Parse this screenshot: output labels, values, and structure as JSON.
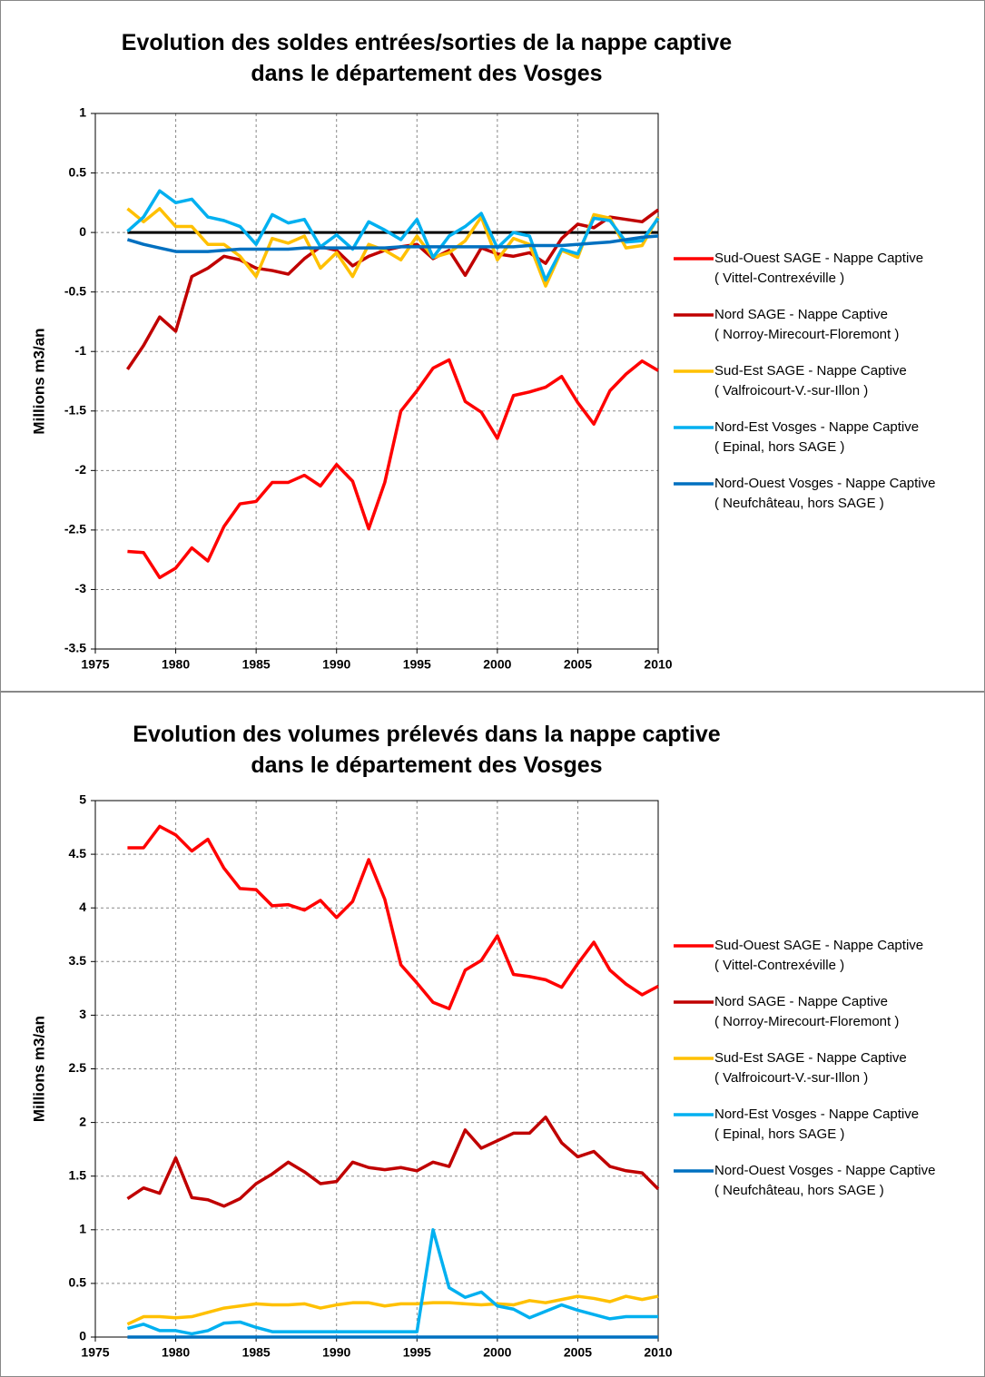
{
  "chart_data": [
    {
      "type": "line",
      "title": "Evolution des soldes entrées/sorties de la nappe captive\ndans le département des Vosges",
      "y_label": "Millions  m3/an",
      "x": [
        1977,
        1978,
        1979,
        1980,
        1981,
        1982,
        1983,
        1984,
        1985,
        1986,
        1987,
        1988,
        1989,
        1990,
        1991,
        1992,
        1993,
        1994,
        1995,
        1996,
        1997,
        1998,
        1999,
        2000,
        2001,
        2002,
        2003,
        2004,
        2005,
        2006,
        2007,
        2008,
        2009,
        2010
      ],
      "xlim": [
        1975,
        2010
      ],
      "xticks": [
        1975,
        1980,
        1985,
        1990,
        1995,
        2000,
        2005,
        2010
      ],
      "ylim": [
        -3.5,
        1
      ],
      "yticks": [
        -3.5,
        -3,
        -2.5,
        -2,
        -1.5,
        -1,
        -0.5,
        0,
        0.5,
        1
      ],
      "grid": true,
      "zero_line": true,
      "series": [
        {
          "name": "Sud-Ouest SAGE - Nappe Captive\n( Vittel-Contrexéville )",
          "color": "#ff0000",
          "values": [
            -2.68,
            -2.69,
            -2.9,
            -2.82,
            -2.65,
            -2.76,
            -2.47,
            -2.28,
            -2.26,
            -2.1,
            -2.1,
            -2.04,
            -2.13,
            -1.95,
            -2.09,
            -2.49,
            -2.1,
            -1.5,
            -1.33,
            -1.14,
            -1.07,
            -1.42,
            -1.51,
            -1.73,
            -1.37,
            -1.34,
            -1.3,
            -1.21,
            -1.43,
            -1.61,
            -1.33,
            -1.19,
            -1.08,
            -1.16
          ]
        },
        {
          "name": "Nord SAGE - Nappe Captive\n( Norroy-Mirecourt-Floremont )",
          "color": "#c00000",
          "values": [
            -1.15,
            -0.95,
            -0.71,
            -0.83,
            -0.37,
            -0.3,
            -0.2,
            -0.23,
            -0.3,
            -0.32,
            -0.35,
            -0.22,
            -0.12,
            -0.15,
            -0.28,
            -0.2,
            -0.15,
            -0.12,
            -0.1,
            -0.22,
            -0.15,
            -0.36,
            -0.13,
            -0.18,
            -0.2,
            -0.17,
            -0.26,
            -0.05,
            0.07,
            0.04,
            0.13,
            0.11,
            0.09,
            0.19
          ]
        },
        {
          "name": "Sud-Est SAGE - Nappe Captive\n( Valfroicourt-V.-sur-Illon )",
          "color": "#ffc000",
          "values": [
            0.2,
            0.09,
            0.2,
            0.05,
            0.05,
            -0.1,
            -0.1,
            -0.2,
            -0.37,
            -0.05,
            -0.09,
            -0.03,
            -0.3,
            -0.17,
            -0.37,
            -0.1,
            -0.15,
            -0.23,
            -0.03,
            -0.21,
            -0.17,
            -0.07,
            0.13,
            -0.23,
            -0.05,
            -0.1,
            -0.45,
            -0.15,
            -0.21,
            0.15,
            0.12,
            -0.13,
            -0.11,
            0.13
          ]
        },
        {
          "name": "Nord-Est Vosges - Nappe Captive\n( Epinal, hors SAGE )",
          "color": "#00b0f0",
          "values": [
            0.01,
            0.13,
            0.35,
            0.25,
            0.28,
            0.13,
            0.1,
            0.05,
            -0.1,
            0.15,
            0.08,
            0.11,
            -0.12,
            -0.02,
            -0.14,
            0.09,
            0.02,
            -0.06,
            0.11,
            -0.21,
            -0.03,
            0.05,
            0.16,
            -0.13,
            0.0,
            -0.03,
            -0.4,
            -0.14,
            -0.18,
            0.12,
            0.1,
            -0.08,
            -0.07,
            0.12
          ]
        },
        {
          "name": "Nord-Ouest Vosges - Nappe Captive\n( Neufchâteau, hors SAGE )",
          "color": "#0070c0",
          "values": [
            -0.06,
            -0.1,
            -0.13,
            -0.16,
            -0.16,
            -0.16,
            -0.15,
            -0.14,
            -0.14,
            -0.14,
            -0.14,
            -0.13,
            -0.13,
            -0.13,
            -0.13,
            -0.13,
            -0.13,
            -0.12,
            -0.12,
            -0.12,
            -0.12,
            -0.12,
            -0.12,
            -0.12,
            -0.12,
            -0.11,
            -0.11,
            -0.11,
            -0.1,
            -0.09,
            -0.08,
            -0.06,
            -0.04,
            -0.03
          ]
        }
      ]
    },
    {
      "type": "line",
      "title": "Evolution des volumes prélevés dans la nappe captive\ndans le département des Vosges",
      "y_label": "Millions  m3/an",
      "x": [
        1977,
        1978,
        1979,
        1980,
        1981,
        1982,
        1983,
        1984,
        1985,
        1986,
        1987,
        1988,
        1989,
        1990,
        1991,
        1992,
        1993,
        1994,
        1995,
        1996,
        1997,
        1998,
        1999,
        2000,
        2001,
        2002,
        2003,
        2004,
        2005,
        2006,
        2007,
        2008,
        2009,
        2010
      ],
      "xlim": [
        1975,
        2010
      ],
      "xticks": [
        1975,
        1980,
        1985,
        1990,
        1995,
        2000,
        2005,
        2010
      ],
      "ylim": [
        0,
        5
      ],
      "yticks": [
        0,
        0.5,
        1,
        1.5,
        2,
        2.5,
        3,
        3.5,
        4,
        4.5,
        5
      ],
      "grid": true,
      "zero_line": false,
      "series": [
        {
          "name": "Sud-Ouest SAGE - Nappe Captive\n( Vittel-Contrexéville )",
          "color": "#ff0000",
          "values": [
            4.56,
            4.56,
            4.76,
            4.68,
            4.53,
            4.64,
            4.37,
            4.18,
            4.17,
            4.02,
            4.03,
            3.98,
            4.07,
            3.91,
            4.06,
            4.45,
            4.08,
            3.47,
            3.3,
            3.12,
            3.06,
            3.42,
            3.51,
            3.74,
            3.38,
            3.36,
            3.33,
            3.26,
            3.48,
            3.68,
            3.42,
            3.29,
            3.19,
            3.27
          ]
        },
        {
          "name": "Nord SAGE - Nappe Captive\n( Norroy-Mirecourt-Floremont )",
          "color": "#c00000",
          "values": [
            1.29,
            1.39,
            1.34,
            1.67,
            1.3,
            1.28,
            1.22,
            1.29,
            1.43,
            1.52,
            1.63,
            1.54,
            1.43,
            1.45,
            1.63,
            1.58,
            1.56,
            1.58,
            1.55,
            1.63,
            1.59,
            1.93,
            1.76,
            1.83,
            1.9,
            1.9,
            2.05,
            1.81,
            1.68,
            1.73,
            1.59,
            1.55,
            1.53,
            1.38
          ]
        },
        {
          "name": "Sud-Est SAGE - Nappe Captive\n( Valfroicourt-V.-sur-Illon )",
          "color": "#ffc000",
          "values": [
            0.12,
            0.19,
            0.19,
            0.18,
            0.19,
            0.23,
            0.27,
            0.29,
            0.31,
            0.3,
            0.3,
            0.31,
            0.27,
            0.3,
            0.32,
            0.32,
            0.29,
            0.31,
            0.31,
            0.32,
            0.32,
            0.31,
            0.3,
            0.31,
            0.3,
            0.34,
            0.32,
            0.35,
            0.38,
            0.36,
            0.33,
            0.38,
            0.35,
            0.38
          ]
        },
        {
          "name": "Nord-Est Vosges - Nappe Captive\n( Epinal, hors SAGE )",
          "color": "#00b0f0",
          "values": [
            0.08,
            0.12,
            0.06,
            0.06,
            0.03,
            0.06,
            0.13,
            0.14,
            0.09,
            0.05,
            0.05,
            0.05,
            0.05,
            0.05,
            0.05,
            0.05,
            0.05,
            0.05,
            0.05,
            1.0,
            0.46,
            0.37,
            0.42,
            0.29,
            0.26,
            0.18,
            0.24,
            0.3,
            0.25,
            0.21,
            0.17,
            0.19,
            0.19,
            0.19
          ]
        },
        {
          "name": "Nord-Ouest Vosges - Nappe Captive\n( Neufchâteau, hors SAGE )",
          "color": "#0070c0",
          "values": [
            0,
            0,
            0,
            0,
            0,
            0,
            0,
            0,
            0,
            0,
            0,
            0,
            0,
            0,
            0,
            0,
            0,
            0,
            0,
            0,
            0,
            0,
            0,
            0,
            0,
            0,
            0,
            0,
            0,
            0,
            0,
            0,
            0,
            0
          ]
        }
      ]
    }
  ]
}
